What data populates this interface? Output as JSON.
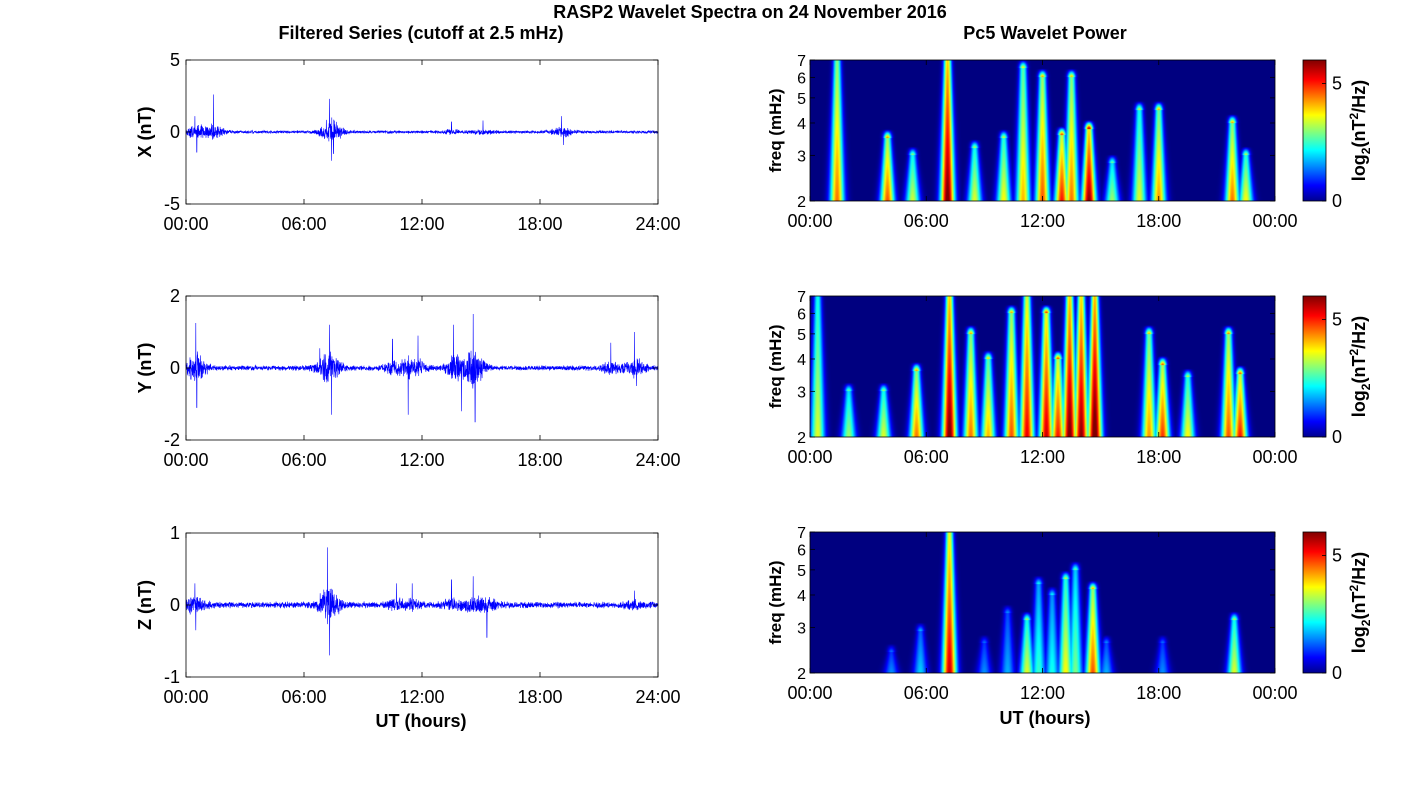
{
  "figure": {
    "title": "RASP2 Wavelet Spectra on 24 November 2016",
    "left_title": "Filtered Series (cutoff at 2.5 mHz)",
    "right_title": "Pc5 Wavelet Power",
    "xlabel": "UT (hours)"
  },
  "colors": {
    "series_line": "#0000ff",
    "axes": "#000000",
    "spectrogram_background": "#00008f",
    "jet_colormap": [
      "#00008f",
      "#0000ff",
      "#00ffff",
      "#ffff00",
      "#ff0000",
      "#800000"
    ]
  },
  "chart_data": [
    {
      "type": "line",
      "id": "x_series",
      "ylabel": "X (nT)",
      "xlim": [
        0,
        24
      ],
      "ylim": [
        -5,
        5
      ],
      "yticks": [
        "5",
        "0",
        "-5"
      ],
      "xticks": [
        "00:00",
        "06:00",
        "12:00",
        "18:00",
        "24:00"
      ],
      "noise_amplitude": 0.12,
      "spikes": [
        [
          0.45,
          1.1
        ],
        [
          0.55,
          -1.4
        ],
        [
          1.4,
          2.6
        ],
        [
          7.3,
          2.3
        ],
        [
          7.4,
          -2.0
        ],
        [
          7.5,
          -1.5
        ],
        [
          13.5,
          0.7
        ],
        [
          15.1,
          0.8
        ],
        [
          19.1,
          1.1
        ],
        [
          19.2,
          -0.9
        ]
      ],
      "series": [
        {
          "values": "dense filtered time series (~0.1-0.3 nT background)"
        }
      ]
    },
    {
      "type": "line",
      "id": "y_series",
      "ylabel": "Y (nT)",
      "xlim": [
        0,
        24
      ],
      "ylim": [
        -2,
        2
      ],
      "yticks": [
        "2",
        "0",
        "-2"
      ],
      "xticks": [
        "00:00",
        "06:00",
        "12:00",
        "18:00",
        "24:00"
      ],
      "noise_amplitude": 0.08,
      "spikes": [
        [
          0.5,
          1.25
        ],
        [
          0.55,
          -1.1
        ],
        [
          6.8,
          0.55
        ],
        [
          7.3,
          1.2
        ],
        [
          7.4,
          -1.3
        ],
        [
          10.5,
          0.8
        ],
        [
          11.3,
          -1.3
        ],
        [
          11.8,
          0.9
        ],
        [
          13.6,
          1.2
        ],
        [
          14.0,
          -1.2
        ],
        [
          14.6,
          1.5
        ],
        [
          14.7,
          -1.5
        ],
        [
          21.6,
          0.7
        ],
        [
          22.8,
          1.0
        ],
        [
          22.9,
          -0.5
        ]
      ],
      "series": [
        {
          "values": "dense filtered time series"
        }
      ]
    },
    {
      "type": "line",
      "id": "z_series",
      "ylabel": "Z (nT)",
      "xlim": [
        0,
        24
      ],
      "ylim": [
        -1,
        1
      ],
      "yticks": [
        "1",
        "0",
        "-1"
      ],
      "xticks": [
        "00:00",
        "06:00",
        "12:00",
        "18:00",
        "24:00"
      ],
      "noise_amplitude": 0.05,
      "spikes": [
        [
          0.45,
          0.3
        ],
        [
          0.5,
          -0.35
        ],
        [
          7.2,
          0.8
        ],
        [
          7.3,
          -0.7
        ],
        [
          10.7,
          0.3
        ],
        [
          11.5,
          0.3
        ],
        [
          13.5,
          0.35
        ],
        [
          14.6,
          0.4
        ],
        [
          15.3,
          -0.45
        ],
        [
          22.8,
          0.2
        ]
      ],
      "series": [
        {
          "values": "dense filtered time series"
        }
      ]
    },
    {
      "type": "heatmap",
      "id": "x_power",
      "ylabel": "freq (mHz)",
      "colorbar_label": "log2(nT2/Hz)",
      "colorbar_ticks": [
        "0",
        "5"
      ],
      "clim": [
        0,
        6
      ],
      "xlim": [
        0,
        24
      ],
      "ylim": [
        2,
        7
      ],
      "yscale": "log",
      "yticks": [
        "7",
        "6",
        "5",
        "4",
        "3",
        "2"
      ],
      "xticks": [
        "00:00",
        "06:00",
        "12:00",
        "18:00",
        "00:00"
      ],
      "blobs": [
        [
          1.4,
          2.0,
          7.0,
          4.6
        ],
        [
          4.0,
          2.0,
          3.5,
          4.8
        ],
        [
          5.3,
          2.0,
          3.0,
          3.5
        ],
        [
          7.1,
          2.0,
          7.0,
          6.2
        ],
        [
          8.5,
          2.0,
          3.2,
          3.6
        ],
        [
          10.0,
          2.0,
          3.5,
          3.8
        ],
        [
          11.0,
          2.0,
          6.5,
          4.2
        ],
        [
          12.0,
          2.0,
          6.0,
          4.8
        ],
        [
          13.0,
          2.0,
          3.6,
          5.2
        ],
        [
          13.5,
          2.0,
          6.0,
          4.6
        ],
        [
          14.4,
          2.0,
          3.8,
          6.0
        ],
        [
          15.6,
          2.0,
          2.8,
          3.2
        ],
        [
          17.0,
          2.0,
          4.5,
          3.6
        ],
        [
          18.0,
          2.0,
          4.5,
          4.4
        ],
        [
          21.8,
          2.0,
          4.0,
          4.6
        ],
        [
          22.5,
          2.0,
          3.0,
          3.8
        ]
      ]
    },
    {
      "type": "heatmap",
      "id": "y_power",
      "ylabel": "freq (mHz)",
      "colorbar_label": "log2(nT2/Hz)",
      "colorbar_ticks": [
        "0",
        "5"
      ],
      "clim": [
        0,
        6
      ],
      "xlim": [
        0,
        24
      ],
      "ylim": [
        2,
        7
      ],
      "yscale": "log",
      "yticks": [
        "7",
        "6",
        "5",
        "4",
        "3",
        "2"
      ],
      "xticks": [
        "00:00",
        "06:00",
        "12:00",
        "18:00",
        "00:00"
      ],
      "blobs": [
        [
          0.4,
          2.0,
          7.0,
          3.6
        ],
        [
          2.0,
          2.0,
          3.0,
          3.2
        ],
        [
          3.8,
          2.0,
          3.0,
          3.6
        ],
        [
          5.5,
          2.0,
          3.6,
          4.6
        ],
        [
          7.2,
          2.0,
          7.0,
          6.2
        ],
        [
          8.3,
          2.0,
          5.0,
          4.6
        ],
        [
          9.2,
          2.0,
          4.0,
          4.2
        ],
        [
          10.4,
          2.0,
          6.0,
          4.8
        ],
        [
          11.2,
          2.0,
          7.0,
          5.4
        ],
        [
          12.2,
          2.0,
          6.0,
          5.6
        ],
        [
          12.8,
          2.0,
          4.0,
          5.2
        ],
        [
          13.4,
          2.0,
          7.0,
          6.2
        ],
        [
          14.0,
          2.0,
          7.0,
          6.0
        ],
        [
          14.7,
          2.0,
          7.0,
          6.4
        ],
        [
          17.5,
          2.0,
          5.0,
          4.4
        ],
        [
          18.2,
          2.0,
          3.8,
          5.0
        ],
        [
          19.5,
          2.0,
          3.4,
          3.8
        ],
        [
          21.6,
          2.0,
          5.0,
          4.8
        ],
        [
          22.2,
          2.0,
          3.5,
          5.2
        ]
      ]
    },
    {
      "type": "heatmap",
      "id": "z_power",
      "ylabel": "freq (mHz)",
      "colorbar_label": "log2(nT2/Hz)",
      "colorbar_ticks": [
        "0",
        "5"
      ],
      "clim": [
        0,
        6
      ],
      "xlim": [
        0,
        24
      ],
      "ylim": [
        2,
        7
      ],
      "yscale": "log",
      "yticks": [
        "7",
        "6",
        "5",
        "4",
        "3",
        "2"
      ],
      "xticks": [
        "00:00",
        "06:00",
        "12:00",
        "18:00",
        "00:00"
      ],
      "blobs": [
        [
          4.2,
          2.0,
          2.4,
          1.6
        ],
        [
          5.7,
          2.0,
          2.9,
          2.0
        ],
        [
          7.2,
          2.0,
          7.0,
          5.6
        ],
        [
          9.0,
          2.0,
          2.6,
          1.6
        ],
        [
          10.2,
          2.0,
          3.4,
          1.8
        ],
        [
          11.2,
          2.0,
          3.2,
          3.6
        ],
        [
          11.8,
          2.0,
          4.4,
          2.6
        ],
        [
          12.5,
          2.0,
          4.0,
          2.4
        ],
        [
          13.2,
          2.0,
          4.6,
          3.8
        ],
        [
          13.7,
          2.0,
          5.0,
          3.0
        ],
        [
          14.6,
          2.0,
          4.2,
          4.8
        ],
        [
          15.3,
          2.0,
          2.6,
          1.8
        ],
        [
          18.2,
          2.0,
          2.6,
          1.6
        ],
        [
          21.9,
          2.0,
          3.2,
          3.6
        ]
      ]
    }
  ]
}
